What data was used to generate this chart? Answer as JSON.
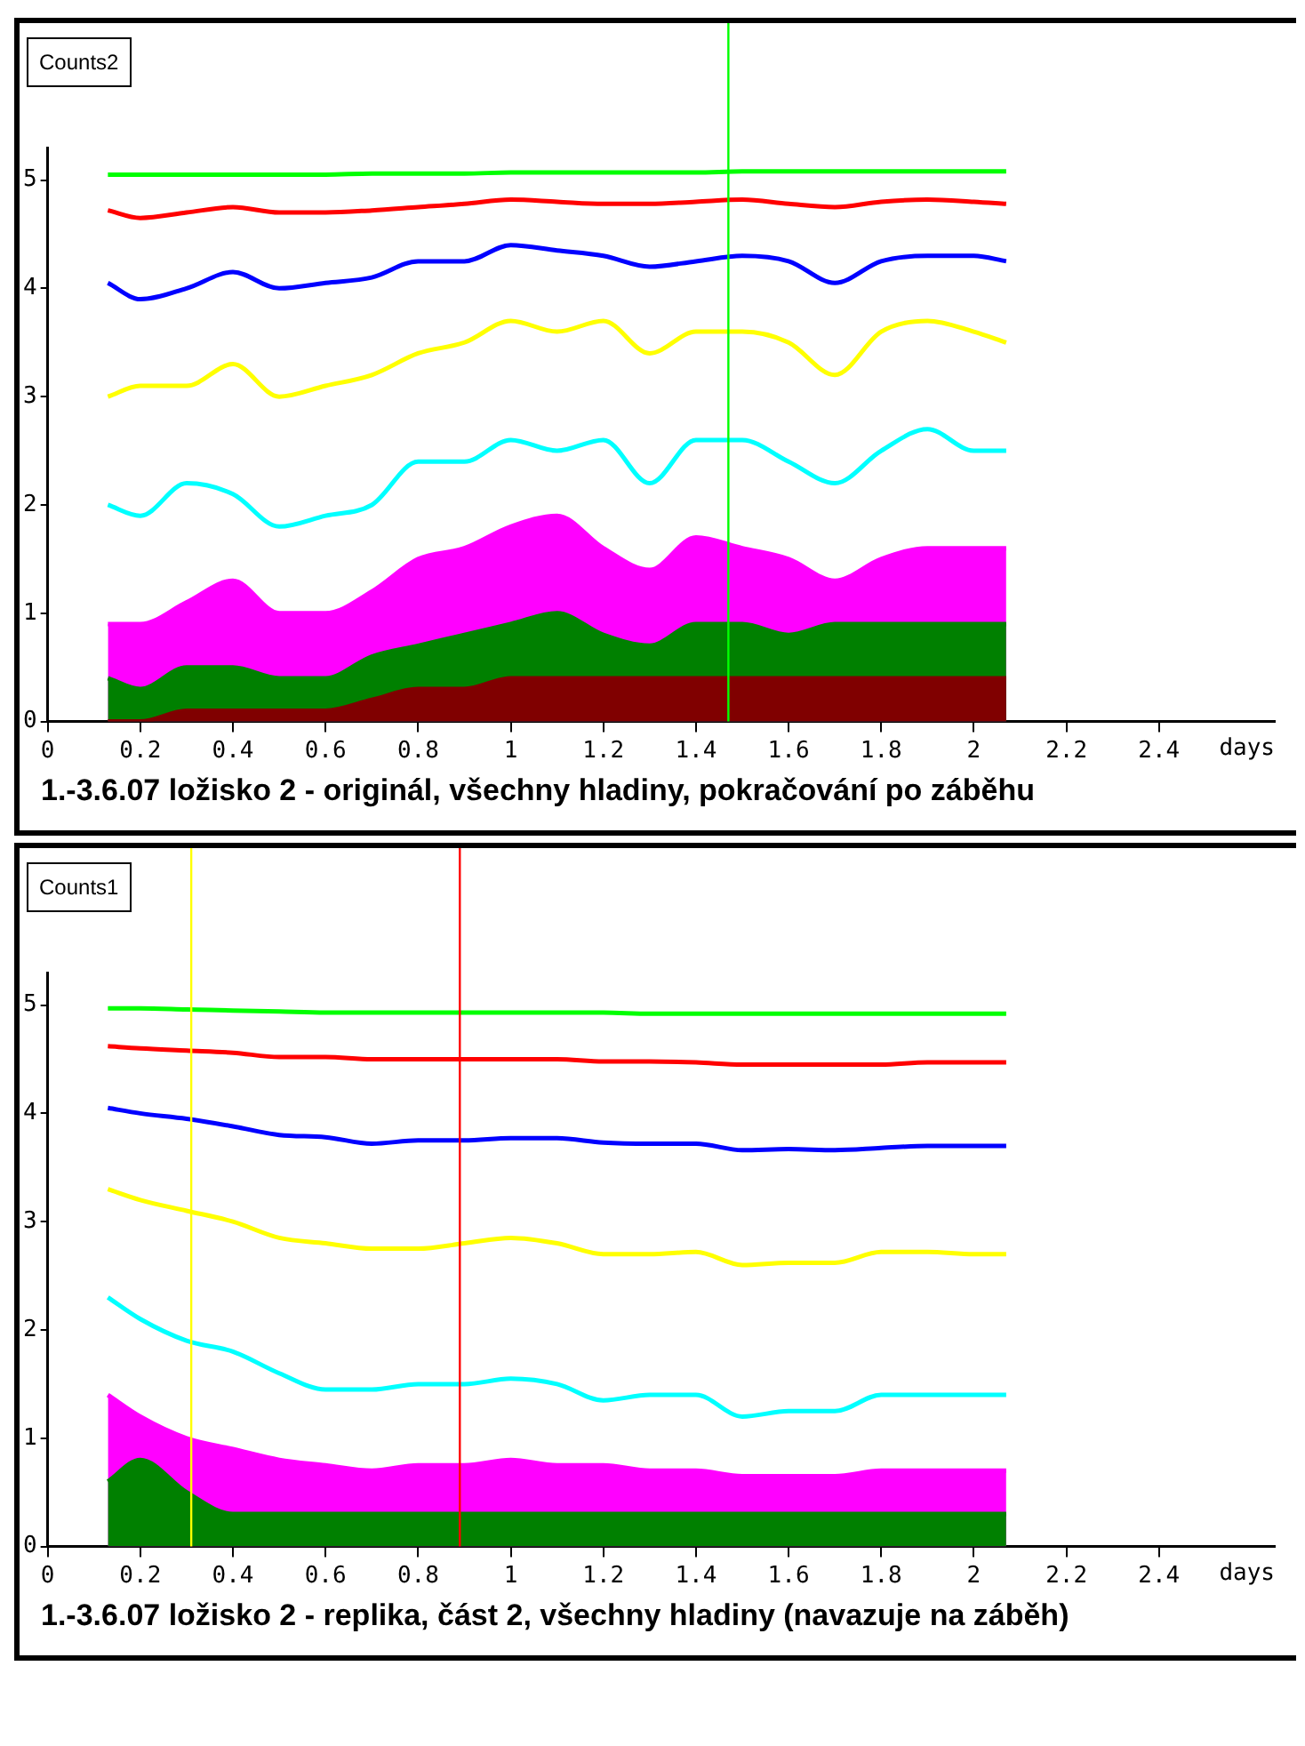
{
  "chart_data": [
    {
      "type": "line",
      "title": "1.-3.6.07 ložisko 2 - originál, všechny hladiny, pokračování po záběhu",
      "xlabel": "days",
      "ylabel": "Counts2",
      "x": [
        0.13,
        0.2,
        0.3,
        0.4,
        0.5,
        0.6,
        0.7,
        0.8,
        0.9,
        1.0,
        1.1,
        1.2,
        1.3,
        1.4,
        1.5,
        1.6,
        1.7,
        1.8,
        1.9,
        2.0,
        2.07
      ],
      "xlim": [
        0,
        2.65
      ],
      "xticks": [
        0,
        0.2,
        0.4,
        0.6,
        0.8,
        1,
        1.2,
        1.4,
        1.6,
        1.8,
        2,
        2.2,
        2.4
      ],
      "ylim": [
        0,
        5.3
      ],
      "yticks": [
        0,
        1,
        2,
        3,
        4,
        5
      ],
      "grid": false,
      "legend": false,
      "marker": "none",
      "line_style": "solid",
      "series": [
        {
          "color": "#800000",
          "type": "area",
          "values": [
            0,
            0,
            0.1,
            0.1,
            0.1,
            0.1,
            0.2,
            0.3,
            0.3,
            0.4,
            0.4,
            0.4,
            0.4,
            0.4,
            0.4,
            0.4,
            0.4,
            0.4,
            0.4,
            0.4,
            0.4
          ]
        },
        {
          "color": "#008000",
          "type": "area",
          "values": [
            0.4,
            0.3,
            0.5,
            0.5,
            0.4,
            0.4,
            0.6,
            0.7,
            0.8,
            0.9,
            1.0,
            0.8,
            0.7,
            0.9,
            0.9,
            0.8,
            0.9,
            0.9,
            0.9,
            0.9,
            0.9
          ]
        },
        {
          "color": "#ff00ff",
          "type": "area",
          "values": [
            0.9,
            0.9,
            1.1,
            1.3,
            1.0,
            1.0,
            1.2,
            1.5,
            1.6,
            1.8,
            1.9,
            1.6,
            1.4,
            1.7,
            1.6,
            1.5,
            1.3,
            1.5,
            1.6,
            1.6,
            1.6
          ]
        },
        {
          "color": "#00ffff",
          "values": [
            2.0,
            1.9,
            2.2,
            2.1,
            1.8,
            1.9,
            2.0,
            2.4,
            2.4,
            2.6,
            2.5,
            2.6,
            2.2,
            2.6,
            2.6,
            2.4,
            2.2,
            2.5,
            2.7,
            2.5,
            2.5
          ]
        },
        {
          "color": "#ffff00",
          "values": [
            3.0,
            3.1,
            3.1,
            3.3,
            3.0,
            3.1,
            3.2,
            3.4,
            3.5,
            3.7,
            3.6,
            3.7,
            3.4,
            3.6,
            3.6,
            3.5,
            3.2,
            3.6,
            3.7,
            3.6,
            3.5
          ]
        },
        {
          "color": "#0000ff",
          "values": [
            4.05,
            3.9,
            4.0,
            4.15,
            4.0,
            4.05,
            4.1,
            4.25,
            4.25,
            4.4,
            4.35,
            4.3,
            4.2,
            4.25,
            4.3,
            4.25,
            4.05,
            4.25,
            4.3,
            4.3,
            4.25
          ]
        },
        {
          "color": "#ff0000",
          "values": [
            4.72,
            4.65,
            4.7,
            4.75,
            4.7,
            4.7,
            4.72,
            4.75,
            4.78,
            4.82,
            4.8,
            4.78,
            4.78,
            4.8,
            4.82,
            4.78,
            4.75,
            4.8,
            4.82,
            4.8,
            4.78
          ]
        },
        {
          "color": "#00ff00",
          "values": [
            5.05,
            5.05,
            5.05,
            5.05,
            5.05,
            5.05,
            5.06,
            5.06,
            5.06,
            5.07,
            5.07,
            5.07,
            5.07,
            5.07,
            5.08,
            5.08,
            5.08,
            5.08,
            5.08,
            5.08,
            5.08
          ]
        }
      ],
      "ref_lines": [
        {
          "axis": "x",
          "value": 1.47,
          "color": "#00ff00"
        }
      ]
    },
    {
      "type": "line",
      "title": "1.-3.6.07 ložisko 2 - replika, část 2, všechny hladiny (navazuje na záběh)",
      "xlabel": "days",
      "ylabel": "Counts1",
      "x": [
        0.13,
        0.2,
        0.3,
        0.4,
        0.5,
        0.6,
        0.7,
        0.8,
        0.9,
        1.0,
        1.1,
        1.2,
        1.3,
        1.4,
        1.5,
        1.6,
        1.7,
        1.8,
        1.9,
        2.0,
        2.07
      ],
      "xlim": [
        0,
        2.65
      ],
      "xticks": [
        0,
        0.2,
        0.4,
        0.6,
        0.8,
        1,
        1.2,
        1.4,
        1.6,
        1.8,
        2,
        2.2,
        2.4
      ],
      "ylim": [
        0,
        5.3
      ],
      "yticks": [
        0,
        1,
        2,
        3,
        4,
        5
      ],
      "grid": false,
      "legend": false,
      "marker": "none",
      "line_style": "solid",
      "series": [
        {
          "color": "#008000",
          "type": "area",
          "values": [
            0.6,
            0.8,
            0.5,
            0.3,
            0.3,
            0.3,
            0.3,
            0.3,
            0.3,
            0.3,
            0.3,
            0.3,
            0.3,
            0.3,
            0.3,
            0.3,
            0.3,
            0.3,
            0.3,
            0.3,
            0.3
          ]
        },
        {
          "color": "#ff00ff",
          "type": "area",
          "values": [
            1.4,
            1.2,
            1.0,
            0.9,
            0.8,
            0.75,
            0.7,
            0.75,
            0.75,
            0.8,
            0.75,
            0.75,
            0.7,
            0.7,
            0.65,
            0.65,
            0.65,
            0.7,
            0.7,
            0.7,
            0.7
          ]
        },
        {
          "color": "#00ffff",
          "values": [
            2.3,
            2.1,
            1.9,
            1.8,
            1.6,
            1.45,
            1.45,
            1.5,
            1.5,
            1.55,
            1.5,
            1.35,
            1.4,
            1.4,
            1.2,
            1.25,
            1.25,
            1.4,
            1.4,
            1.4,
            1.4
          ]
        },
        {
          "color": "#ffff00",
          "values": [
            3.3,
            3.2,
            3.1,
            3.0,
            2.85,
            2.8,
            2.75,
            2.75,
            2.8,
            2.85,
            2.8,
            2.7,
            2.7,
            2.72,
            2.6,
            2.62,
            2.62,
            2.72,
            2.72,
            2.7,
            2.7
          ]
        },
        {
          "color": "#0000ff",
          "values": [
            4.05,
            4.0,
            3.95,
            3.88,
            3.8,
            3.78,
            3.72,
            3.75,
            3.75,
            3.77,
            3.77,
            3.73,
            3.72,
            3.72,
            3.66,
            3.67,
            3.66,
            3.68,
            3.7,
            3.7,
            3.7
          ]
        },
        {
          "color": "#ff0000",
          "values": [
            4.62,
            4.6,
            4.58,
            4.56,
            4.52,
            4.52,
            4.5,
            4.5,
            4.5,
            4.5,
            4.5,
            4.48,
            4.48,
            4.47,
            4.45,
            4.45,
            4.45,
            4.45,
            4.47,
            4.47,
            4.47
          ]
        },
        {
          "color": "#00ff00",
          "values": [
            4.97,
            4.97,
            4.96,
            4.95,
            4.94,
            4.93,
            4.93,
            4.93,
            4.93,
            4.93,
            4.93,
            4.93,
            4.92,
            4.92,
            4.92,
            4.92,
            4.92,
            4.92,
            4.92,
            4.92,
            4.92
          ]
        }
      ],
      "ref_lines": [
        {
          "axis": "x",
          "value": 0.31,
          "color": "#ffff00"
        },
        {
          "axis": "x",
          "value": 0.89,
          "color": "#ff0000"
        }
      ]
    }
  ]
}
